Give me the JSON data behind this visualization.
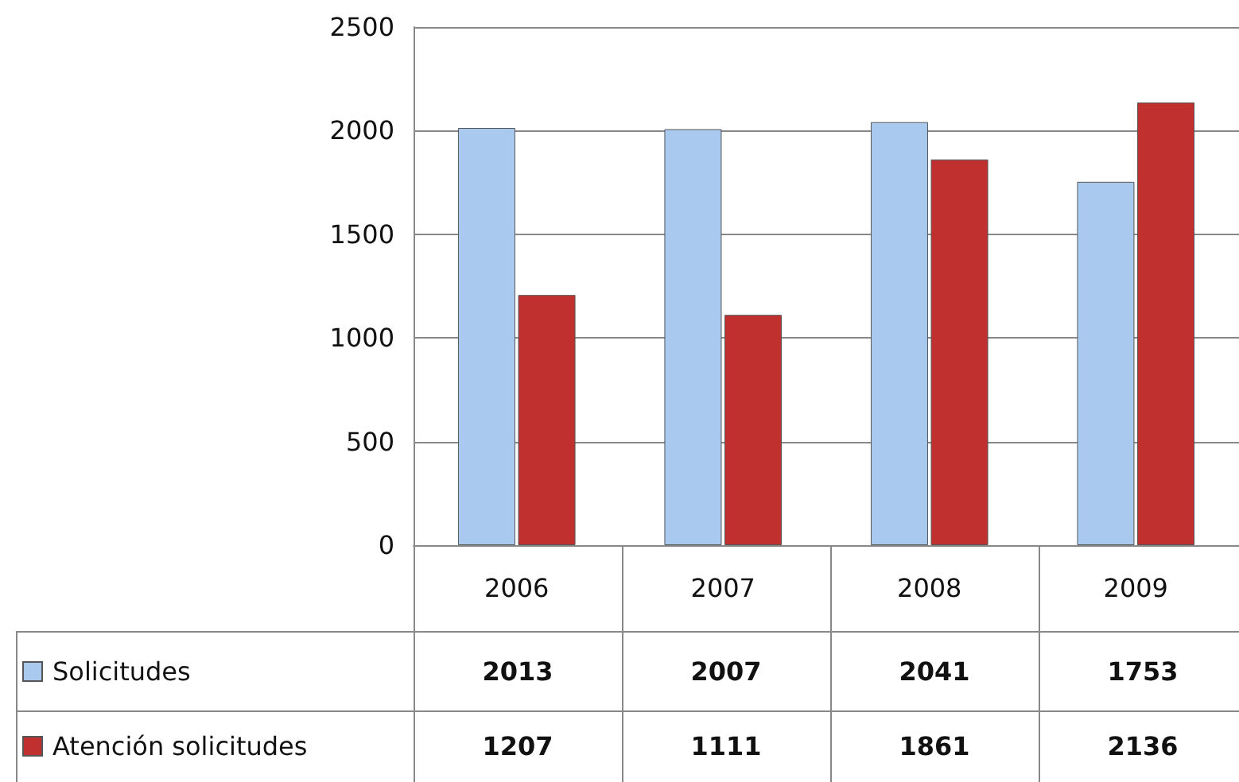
{
  "chart_data": {
    "type": "bar",
    "categories": [
      "2006",
      "2007",
      "2008",
      "2009"
    ],
    "series": [
      {
        "name": "Solicitudes",
        "color": "#a9c9ef",
        "values": [
          2013,
          2007,
          2041,
          1753
        ]
      },
      {
        "name": "Atención solicitudes",
        "color": "#c0302f",
        "values": [
          1207,
          1111,
          1861,
          2136
        ]
      }
    ],
    "ylim": [
      0,
      2500
    ],
    "yticks": [
      0,
      500,
      1000,
      1500,
      2000,
      2500
    ],
    "grid": "y",
    "legend": "bottom",
    "data_labels": true
  }
}
